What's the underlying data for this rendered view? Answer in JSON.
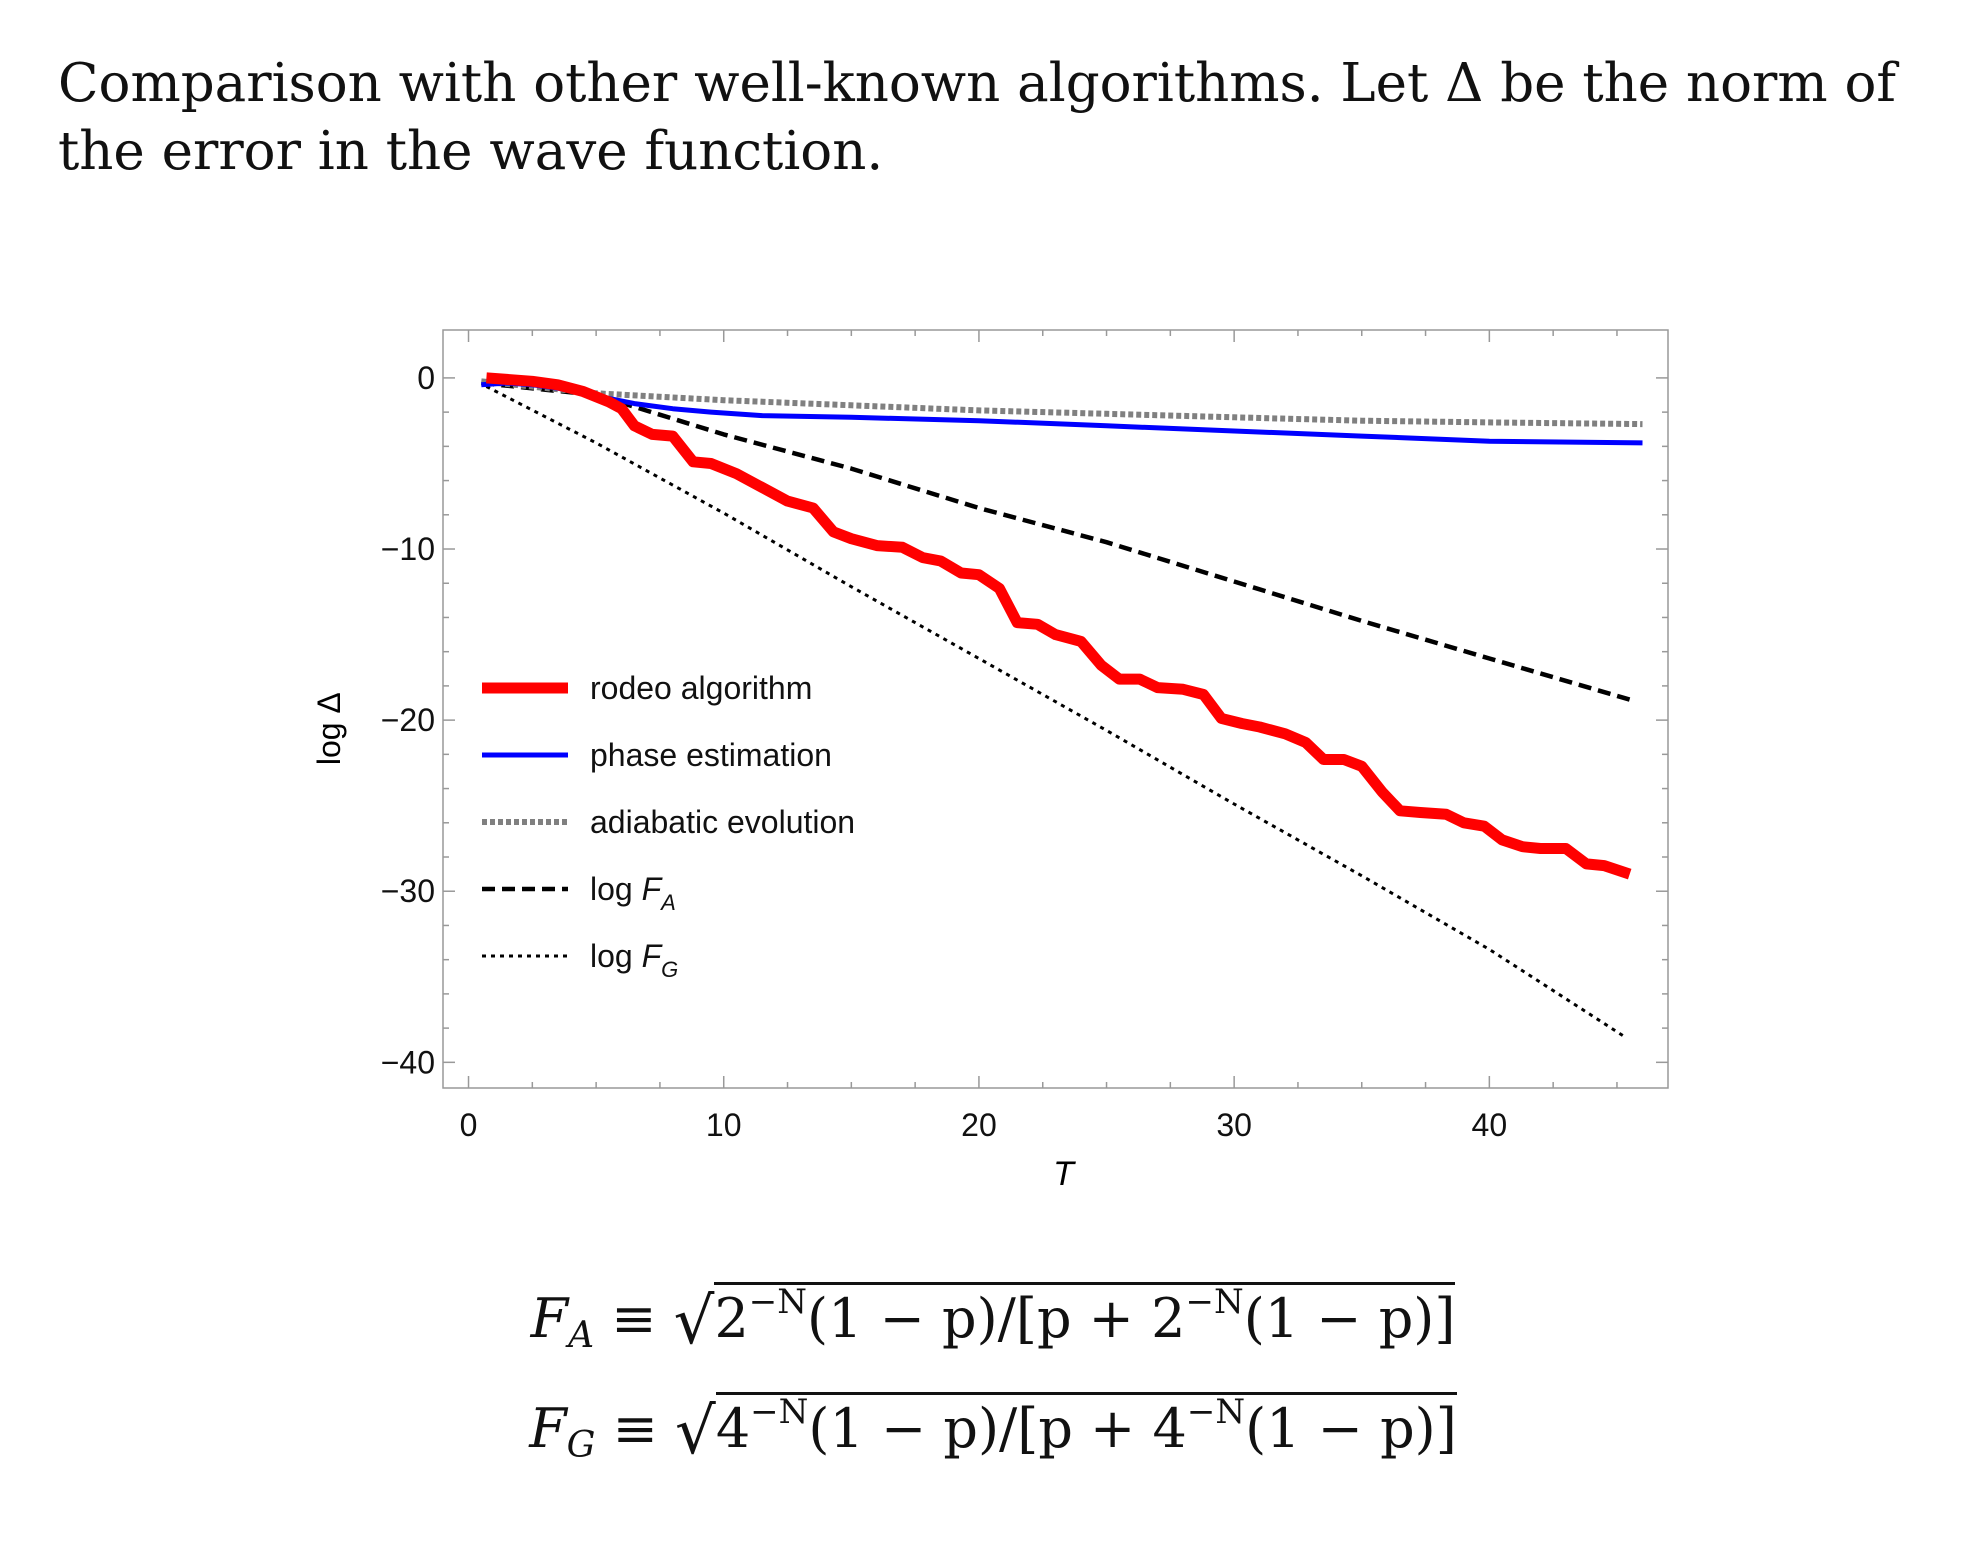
{
  "heading": "Comparison with other well-known algorithms.  Let Δ be the norm of the error in the wave function.",
  "formulas": {
    "fa": {
      "lhs": "F",
      "sub": "A",
      "eq": "≡",
      "base1": "2",
      "exp1": "−N",
      "mid": "(1 − p)/[p + ",
      "base2": "2",
      "exp2": "−N",
      "tail": "(1 − p)]"
    },
    "fg": {
      "lhs": "F",
      "sub": "G",
      "eq": "≡",
      "base1": "4",
      "exp1": "−N",
      "mid": "(1 − p)/[p + ",
      "base2": "4",
      "exp2": "−N",
      "tail": "(1 − p)]"
    }
  },
  "chart_data": {
    "type": "line",
    "title": "",
    "xlabel": "T",
    "ylabel": "log Δ",
    "xlim": [
      -1,
      47
    ],
    "ylim": [
      -41.5,
      2.8
    ],
    "xticks": [
      0,
      10,
      20,
      30,
      40
    ],
    "yticks": [
      0,
      -10,
      -20,
      -30,
      -40
    ],
    "xtick_labels": [
      "0",
      "10",
      "20",
      "30",
      "40"
    ],
    "ytick_labels": [
      "0",
      "−10",
      "−20",
      "−30",
      "−40"
    ],
    "grid": false,
    "legend_position": "center-left",
    "colors": {
      "rodeo": "#ff0000",
      "phase": "#0000ff",
      "adiabatic": "#808080",
      "fa": "#000000",
      "fg": "#000000"
    },
    "series": [
      {
        "name": "rodeo algorithm",
        "legend_text": "rodeo algorithm",
        "style": "solid-thick",
        "points": [
          [
            0.7,
            0.0
          ],
          [
            2.5,
            -0.2
          ],
          [
            3.5,
            -0.4
          ],
          [
            4.5,
            -0.8
          ],
          [
            5.5,
            -1.4
          ],
          [
            6.0,
            -1.8
          ],
          [
            6.5,
            -2.8
          ],
          [
            7.2,
            -3.3
          ],
          [
            8.0,
            -3.4
          ],
          [
            8.8,
            -4.9
          ],
          [
            9.5,
            -5.0
          ],
          [
            10.5,
            -5.6
          ],
          [
            11.5,
            -6.4
          ],
          [
            12.5,
            -7.2
          ],
          [
            13.5,
            -7.6
          ],
          [
            14.3,
            -9.0
          ],
          [
            15.0,
            -9.4
          ],
          [
            16.0,
            -9.8
          ],
          [
            17.0,
            -9.9
          ],
          [
            17.8,
            -10.5
          ],
          [
            18.5,
            -10.7
          ],
          [
            19.3,
            -11.4
          ],
          [
            20.0,
            -11.5
          ],
          [
            20.8,
            -12.3
          ],
          [
            21.5,
            -14.3
          ],
          [
            22.3,
            -14.4
          ],
          [
            23.0,
            -15.0
          ],
          [
            24.0,
            -15.4
          ],
          [
            24.8,
            -16.8
          ],
          [
            25.5,
            -17.6
          ],
          [
            26.3,
            -17.6
          ],
          [
            27.0,
            -18.1
          ],
          [
            28.0,
            -18.2
          ],
          [
            28.8,
            -18.5
          ],
          [
            29.5,
            -19.9
          ],
          [
            30.3,
            -20.2
          ],
          [
            31.0,
            -20.4
          ],
          [
            32.0,
            -20.8
          ],
          [
            32.8,
            -21.3
          ],
          [
            33.5,
            -22.3
          ],
          [
            34.3,
            -22.3
          ],
          [
            35.0,
            -22.7
          ],
          [
            35.8,
            -24.2
          ],
          [
            36.5,
            -25.3
          ],
          [
            37.3,
            -25.4
          ],
          [
            38.3,
            -25.5
          ],
          [
            39.0,
            -26.0
          ],
          [
            39.8,
            -26.2
          ],
          [
            40.5,
            -27.0
          ],
          [
            41.3,
            -27.4
          ],
          [
            42.0,
            -27.5
          ],
          [
            43.0,
            -27.5
          ],
          [
            43.8,
            -28.4
          ],
          [
            44.5,
            -28.5
          ],
          [
            45.5,
            -29.0
          ]
        ]
      },
      {
        "name": "phase estimation",
        "legend_text": "phase estimation",
        "style": "solid",
        "points": [
          [
            0.5,
            -0.4
          ],
          [
            1.5,
            -0.3
          ],
          [
            2.5,
            -0.4
          ],
          [
            3.5,
            -0.6
          ],
          [
            4.5,
            -0.9
          ],
          [
            5.5,
            -1.2
          ],
          [
            6.5,
            -1.5
          ],
          [
            8.0,
            -1.8
          ],
          [
            9.5,
            -2.0
          ],
          [
            11.5,
            -2.2
          ],
          [
            15,
            -2.3
          ],
          [
            20,
            -2.5
          ],
          [
            25,
            -2.8
          ],
          [
            30,
            -3.1
          ],
          [
            35,
            -3.4
          ],
          [
            40,
            -3.7
          ],
          [
            46,
            -3.8
          ]
        ]
      },
      {
        "name": "adiabatic evolution",
        "legend_text": "adiabatic evolution",
        "style": "dotted-gray",
        "points": [
          [
            0.5,
            -0.2
          ],
          [
            5,
            -0.9
          ],
          [
            10,
            -1.3
          ],
          [
            15,
            -1.6
          ],
          [
            20,
            -1.9
          ],
          [
            25,
            -2.1
          ],
          [
            30,
            -2.3
          ],
          [
            35,
            -2.5
          ],
          [
            40,
            -2.6
          ],
          [
            46,
            -2.7
          ]
        ]
      },
      {
        "name": "log F_A",
        "legend_text": "log F",
        "legend_sub": "A",
        "style": "dashed",
        "points": [
          [
            0.5,
            -0.3
          ],
          [
            5,
            -1.0
          ],
          [
            10,
            -3.3
          ],
          [
            15,
            -5.3
          ],
          [
            20,
            -7.6
          ],
          [
            25,
            -9.6
          ],
          [
            30,
            -11.9
          ],
          [
            35,
            -14.2
          ],
          [
            40,
            -16.4
          ],
          [
            45.5,
            -18.8
          ]
        ]
      },
      {
        "name": "log F_G",
        "legend_text": "log F",
        "legend_sub": "G",
        "style": "dotted",
        "points": [
          [
            0.7,
            -0.5
          ],
          [
            5,
            -3.8
          ],
          [
            10,
            -7.9
          ],
          [
            15,
            -12.2
          ],
          [
            20,
            -16.4
          ],
          [
            25,
            -20.6
          ],
          [
            30,
            -24.9
          ],
          [
            35,
            -29.1
          ],
          [
            40,
            -33.4
          ],
          [
            45.3,
            -38.5
          ]
        ]
      }
    ]
  }
}
